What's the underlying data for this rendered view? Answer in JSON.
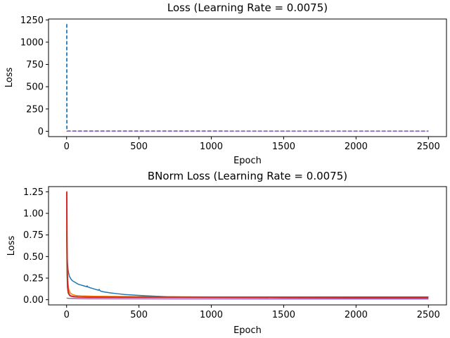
{
  "chart_data": [
    {
      "type": "line",
      "title": "Loss (Learning Rate = 0.0075)",
      "xlabel": "Epoch",
      "ylabel": "Loss",
      "xlim": [
        -125,
        2625
      ],
      "ylim": [
        -60,
        1260
      ],
      "xticks": [
        0,
        500,
        1000,
        1500,
        2000,
        2500
      ],
      "yticks": [
        0,
        250,
        500,
        750,
        1000,
        1250
      ],
      "grid": false,
      "series": [
        {
          "color": "#1f77b4",
          "dash": "5,3",
          "width": 1.8,
          "x": [
            0,
            1,
            2,
            5,
            2500
          ],
          "y": [
            1200,
            1200,
            4,
            2,
            1
          ]
        },
        {
          "color": "#ff7f0e",
          "dash": "5,3",
          "width": 1.2,
          "x": [
            0,
            1,
            2500
          ],
          "y": [
            3,
            1,
            0.5
          ]
        },
        {
          "color": "#2ca02c",
          "dash": "5,3",
          "width": 1.2,
          "x": [
            0,
            1,
            2500
          ],
          "y": [
            2,
            1,
            0.5
          ]
        },
        {
          "color": "#d62728",
          "dash": "5,3",
          "width": 1.2,
          "x": [
            0,
            1,
            2500
          ],
          "y": [
            2,
            1,
            0.5
          ]
        },
        {
          "color": "#9467bd",
          "dash": "5,3",
          "width": 1.2,
          "x": [
            0,
            1,
            2500
          ],
          "y": [
            1,
            0.5,
            0.3
          ]
        }
      ]
    },
    {
      "type": "line",
      "title": "BNorm Loss (Learning Rate = 0.0075)",
      "xlabel": "Epoch",
      "ylabel": "Loss",
      "xlim": [
        -125,
        2625
      ],
      "ylim": [
        -0.06,
        1.31
      ],
      "xticks": [
        0,
        500,
        1000,
        1500,
        2000,
        2500
      ],
      "yticks": [
        0.0,
        0.25,
        0.5,
        0.75,
        1.0,
        1.25
      ],
      "ytick_labels": [
        "0.00",
        "0.25",
        "0.50",
        "0.75",
        "1.00",
        "1.25"
      ],
      "grid": false,
      "series": [
        {
          "color": "#1f77b4",
          "dash": "",
          "width": 1.5,
          "x": [
            0,
            1,
            3,
            6,
            10,
            15,
            20,
            30,
            40,
            50,
            60,
            80,
            100,
            120,
            140,
            142,
            145,
            160,
            180,
            200,
            220,
            225,
            228,
            235,
            260,
            300,
            350,
            400,
            450,
            500,
            600,
            700,
            800,
            1000,
            1200,
            1500,
            2000,
            2500
          ],
          "y": [
            1.05,
            0.9,
            0.6,
            0.43,
            0.35,
            0.3,
            0.27,
            0.24,
            0.22,
            0.21,
            0.2,
            0.18,
            0.17,
            0.16,
            0.15,
            0.16,
            0.15,
            0.14,
            0.13,
            0.12,
            0.11,
            0.12,
            0.11,
            0.1,
            0.09,
            0.08,
            0.07,
            0.06,
            0.055,
            0.05,
            0.042,
            0.035,
            0.032,
            0.028,
            0.025,
            0.022,
            0.02,
            0.018
          ]
        },
        {
          "color": "#ff7f0e",
          "dash": "",
          "width": 1.5,
          "x": [
            0,
            3,
            8,
            15,
            25,
            40,
            60,
            100,
            200,
            500,
            1000,
            2500
          ],
          "y": [
            0.95,
            0.55,
            0.22,
            0.12,
            0.08,
            0.06,
            0.05,
            0.045,
            0.04,
            0.035,
            0.032,
            0.03
          ]
        },
        {
          "color": "#2ca02c",
          "dash": "",
          "width": 1.5,
          "x": [
            0,
            2,
            5,
            10,
            20,
            40,
            80,
            200,
            500,
            1000,
            2500
          ],
          "y": [
            0.8,
            0.4,
            0.15,
            0.08,
            0.05,
            0.04,
            0.033,
            0.03,
            0.028,
            0.026,
            0.025
          ]
        },
        {
          "color": "#d62728",
          "dash": "",
          "width": 2.0,
          "x": [
            0,
            1,
            3,
            5,
            8,
            12,
            18,
            25,
            35,
            50,
            80,
            150,
            300,
            600,
            1000,
            1500,
            2000,
            2500
          ],
          "y": [
            1.25,
            1.25,
            0.6,
            0.3,
            0.15,
            0.09,
            0.06,
            0.045,
            0.04,
            0.035,
            0.032,
            0.03,
            0.03,
            0.03,
            0.03,
            0.03,
            0.03,
            0.03
          ]
        },
        {
          "color": "#9467bd",
          "dash": "",
          "width": 1.5,
          "x": [
            0,
            5,
            20,
            100,
            500,
            1000,
            2500
          ],
          "y": [
            0.02,
            0.018,
            0.015,
            0.012,
            0.01,
            0.009,
            0.008
          ]
        }
      ]
    }
  ]
}
